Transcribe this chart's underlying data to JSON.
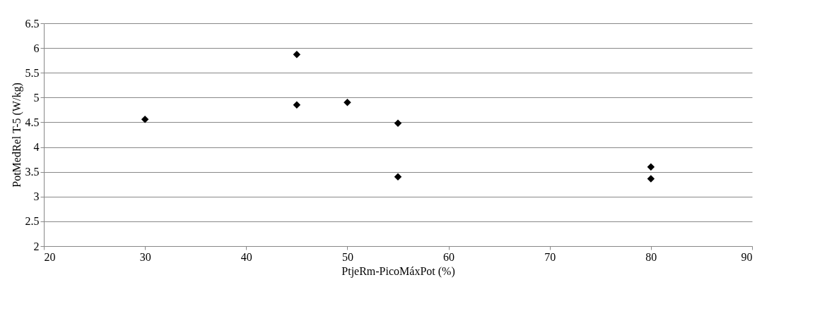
{
  "chart_data": {
    "type": "scatter",
    "xlabel": "PtjeRm-PicoMáxPot (%)",
    "ylabel": "PotMedRel T-5 (W/kg)",
    "x": [
      30,
      45,
      45,
      50,
      55,
      55,
      80,
      80
    ],
    "series": [
      {
        "color": "#000000",
        "values": [
          4.56,
          5.87,
          4.85,
          4.9,
          4.48,
          3.4,
          3.6,
          3.36
        ]
      }
    ],
    "xlim": [
      20,
      90
    ],
    "xticks": [
      20,
      30,
      40,
      50,
      60,
      70,
      80,
      90
    ],
    "ylim": [
      2,
      6.5
    ],
    "yticks": [
      2,
      2.5,
      3,
      3.5,
      4,
      4.5,
      5,
      5.5,
      6,
      6.5
    ],
    "grid": "y",
    "marker": "diamond"
  }
}
